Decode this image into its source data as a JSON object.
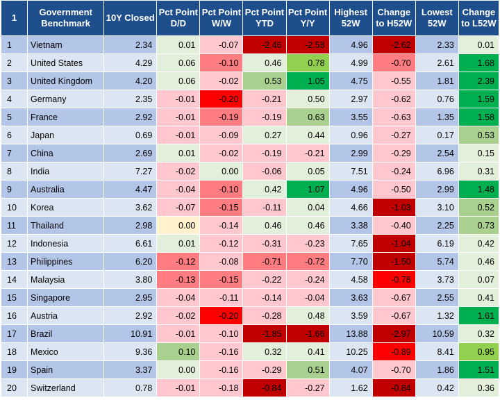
{
  "headers": {
    "idx": "1",
    "benchmark": "Government Benchmark",
    "closed": "10Y Closed",
    "dd": "Pct Point D/D",
    "ww": "Pct Point W/W",
    "ytd": "Pct Point YTD",
    "yy": "Pct Point Y/Y",
    "h52": "Highest 52W",
    "ch52": "Change to H52W",
    "l52": "Lowest 52W",
    "cl52": "Change to L52W"
  },
  "colors": {
    "header_bg": "#1f4e8c",
    "row_dark": "#b4c6e7",
    "row_light": "#dce6f2"
  },
  "rows": [
    {
      "n": "1",
      "name": "Vietnam",
      "closed": "2.34",
      "dd": [
        "0.01",
        "#e2efda"
      ],
      "ww": [
        "-0.07",
        "#ffc7ce"
      ],
      "ytd": [
        "-2.46",
        "#c00000"
      ],
      "yy": [
        "-2.58",
        "#c00000"
      ],
      "h52": "4.96",
      "ch52": [
        "-2.62",
        "#c00000"
      ],
      "l52": "2.33",
      "cl52": [
        "0.01",
        "#e2efda"
      ]
    },
    {
      "n": "2",
      "name": "United States",
      "closed": "4.29",
      "dd": [
        "0.06",
        "#e2efda"
      ],
      "ww": [
        "-0.10",
        "#ff7c80"
      ],
      "ytd": [
        "0.46",
        "#e2efda"
      ],
      "yy": [
        "0.78",
        "#92d050"
      ],
      "h52": "4.99",
      "ch52": [
        "-0.70",
        "#ff7c80"
      ],
      "l52": "2.61",
      "cl52": [
        "1.68",
        "#00b050"
      ]
    },
    {
      "n": "3",
      "name": "United Kingdom",
      "closed": "4.20",
      "dd": [
        "0.06",
        "#e2efda"
      ],
      "ww": [
        "-0.02",
        "#ffc7ce"
      ],
      "ytd": [
        "0.53",
        "#a9d08e"
      ],
      "yy": [
        "1.05",
        "#00b050"
      ],
      "h52": "4.75",
      "ch52": [
        "-0.55",
        "#ffc7ce"
      ],
      "l52": "1.81",
      "cl52": [
        "2.39",
        "#00b050"
      ]
    },
    {
      "n": "4",
      "name": "Germany",
      "closed": "2.35",
      "dd": [
        "-0.01",
        "#ffc7ce"
      ],
      "ww": [
        "-0.20",
        "#ff0000"
      ],
      "ytd": [
        "-0.21",
        "#ffc7ce"
      ],
      "yy": [
        "0.50",
        "#e2efda"
      ],
      "h52": "2.97",
      "ch52": [
        "-0.62",
        "#ffc7ce"
      ],
      "l52": "0.76",
      "cl52": [
        "1.59",
        "#00b050"
      ]
    },
    {
      "n": "5",
      "name": "France",
      "closed": "2.92",
      "dd": [
        "-0.01",
        "#ffc7ce"
      ],
      "ww": [
        "-0.19",
        "#ff7c80"
      ],
      "ytd": [
        "-0.19",
        "#ffc7ce"
      ],
      "yy": [
        "0.63",
        "#a9d08e"
      ],
      "h52": "3.55",
      "ch52": [
        "-0.63",
        "#ffc7ce"
      ],
      "l52": "1.35",
      "cl52": [
        "1.58",
        "#00b050"
      ]
    },
    {
      "n": "6",
      "name": "Japan",
      "closed": "0.69",
      "dd": [
        "-0.01",
        "#ffc7ce"
      ],
      "ww": [
        "-0.09",
        "#ffc7ce"
      ],
      "ytd": [
        "0.27",
        "#e2efda"
      ],
      "yy": [
        "0.44",
        "#e2efda"
      ],
      "h52": "0.96",
      "ch52": [
        "-0.27",
        "#ffc7ce"
      ],
      "l52": "0.17",
      "cl52": [
        "0.53",
        "#a9d08e"
      ]
    },
    {
      "n": "7",
      "name": "China",
      "closed": "2.69",
      "dd": [
        "0.01",
        "#e2efda"
      ],
      "ww": [
        "-0.02",
        "#ffc7ce"
      ],
      "ytd": [
        "-0.19",
        "#ffc7ce"
      ],
      "yy": [
        "-0.21",
        "#ffc7ce"
      ],
      "h52": "2.99",
      "ch52": [
        "-0.29",
        "#ffc7ce"
      ],
      "l52": "2.54",
      "cl52": [
        "0.15",
        "#e2efda"
      ]
    },
    {
      "n": "8",
      "name": "India",
      "closed": "7.27",
      "dd": [
        "-0.02",
        "#ffc7ce"
      ],
      "ww": [
        "0.00",
        "#e2efda"
      ],
      "ytd": [
        "-0.06",
        "#ffc7ce"
      ],
      "yy": [
        "0.05",
        "#e2efda"
      ],
      "h52": "7.51",
      "ch52": [
        "-0.24",
        "#ffc7ce"
      ],
      "l52": "6.96",
      "cl52": [
        "0.31",
        "#e2efda"
      ]
    },
    {
      "n": "9",
      "name": "Australia",
      "closed": "4.47",
      "dd": [
        "-0.04",
        "#ffc7ce"
      ],
      "ww": [
        "-0.10",
        "#ff7c80"
      ],
      "ytd": [
        "0.42",
        "#e2efda"
      ],
      "yy": [
        "1.07",
        "#00b050"
      ],
      "h52": "4.96",
      "ch52": [
        "-0.50",
        "#ffc7ce"
      ],
      "l52": "2.99",
      "cl52": [
        "1.48",
        "#00b050"
      ]
    },
    {
      "n": "10",
      "name": "Korea",
      "closed": "3.62",
      "dd": [
        "-0.07",
        "#ffc7ce"
      ],
      "ww": [
        "-0.15",
        "#ff7c80"
      ],
      "ytd": [
        "-0.11",
        "#ffc7ce"
      ],
      "yy": [
        "0.04",
        "#e2efda"
      ],
      "h52": "4.66",
      "ch52": [
        "-1.03",
        "#c00000"
      ],
      "l52": "3.10",
      "cl52": [
        "0.52",
        "#a9d08e"
      ]
    },
    {
      "n": "11",
      "name": "Thailand",
      "closed": "2.98",
      "dd": [
        "0.00",
        "#fff2cc"
      ],
      "ww": [
        "-0.14",
        "#ffc7ce"
      ],
      "ytd": [
        "0.46",
        "#e2efda"
      ],
      "yy": [
        "0.46",
        "#e2efda"
      ],
      "h52": "3.38",
      "ch52": [
        "-0.40",
        "#ffc7ce"
      ],
      "l52": "2.25",
      "cl52": [
        "0.73",
        "#a9d08e"
      ]
    },
    {
      "n": "12",
      "name": "Indonesia",
      "closed": "6.61",
      "dd": [
        "0.01",
        "#e2efda"
      ],
      "ww": [
        "-0.12",
        "#ffc7ce"
      ],
      "ytd": [
        "-0.31",
        "#ffc7ce"
      ],
      "yy": [
        "-0.23",
        "#ffc7ce"
      ],
      "h52": "7.65",
      "ch52": [
        "-1.04",
        "#c00000"
      ],
      "l52": "6.19",
      "cl52": [
        "0.42",
        "#e2efda"
      ]
    },
    {
      "n": "13",
      "name": "Philippines",
      "closed": "6.20",
      "dd": [
        "-0.12",
        "#ff7c80"
      ],
      "ww": [
        "-0.08",
        "#ffc7ce"
      ],
      "ytd": [
        "-0.71",
        "#ff7c80"
      ],
      "yy": [
        "-0.72",
        "#ff7c80"
      ],
      "h52": "7.70",
      "ch52": [
        "-1.50",
        "#c00000"
      ],
      "l52": "5.74",
      "cl52": [
        "0.46",
        "#e2efda"
      ]
    },
    {
      "n": "14",
      "name": "Malaysia",
      "closed": "3.80",
      "dd": [
        "-0.13",
        "#ff7c80"
      ],
      "ww": [
        "-0.15",
        "#ff7c80"
      ],
      "ytd": [
        "-0.22",
        "#ffc7ce"
      ],
      "yy": [
        "-0.24",
        "#ffc7ce"
      ],
      "h52": "4.58",
      "ch52": [
        "-0.78",
        "#ff0000"
      ],
      "l52": "3.73",
      "cl52": [
        "0.07",
        "#e2efda"
      ]
    },
    {
      "n": "15",
      "name": "Singapore",
      "closed": "2.95",
      "dd": [
        "-0.04",
        "#ffc7ce"
      ],
      "ww": [
        "-0.11",
        "#ffc7ce"
      ],
      "ytd": [
        "-0.14",
        "#ffc7ce"
      ],
      "yy": [
        "-0.04",
        "#ffc7ce"
      ],
      "h52": "3.63",
      "ch52": [
        "-0.67",
        "#ffc7ce"
      ],
      "l52": "2.55",
      "cl52": [
        "0.41",
        "#e2efda"
      ]
    },
    {
      "n": "16",
      "name": "Austria",
      "closed": "2.92",
      "dd": [
        "-0.02",
        "#ffc7ce"
      ],
      "ww": [
        "-0.20",
        "#ff0000"
      ],
      "ytd": [
        "-0.28",
        "#ffc7ce"
      ],
      "yy": [
        "0.48",
        "#e2efda"
      ],
      "h52": "3.59",
      "ch52": [
        "-0.67",
        "#ffc7ce"
      ],
      "l52": "1.32",
      "cl52": [
        "1.61",
        "#00b050"
      ]
    },
    {
      "n": "17",
      "name": "Brazil",
      "closed": "10.91",
      "dd": [
        "-0.01",
        "#ffc7ce"
      ],
      "ww": [
        "-0.10",
        "#ffc7ce"
      ],
      "ytd": [
        "-1.85",
        "#c00000"
      ],
      "yy": [
        "-1.66",
        "#c00000"
      ],
      "h52": "13.88",
      "ch52": [
        "-2.97",
        "#c00000"
      ],
      "l52": "10.59",
      "cl52": [
        "0.32",
        "#e2efda"
      ]
    },
    {
      "n": "18",
      "name": "Mexico",
      "closed": "9.36",
      "dd": [
        "0.10",
        "#a9d08e"
      ],
      "ww": [
        "-0.16",
        "#ffc7ce"
      ],
      "ytd": [
        "0.32",
        "#e2efda"
      ],
      "yy": [
        "0.41",
        "#e2efda"
      ],
      "h52": "10.25",
      "ch52": [
        "-0.89",
        "#ff0000"
      ],
      "l52": "8.41",
      "cl52": [
        "0.95",
        "#92d050"
      ]
    },
    {
      "n": "19",
      "name": "Spain",
      "closed": "3.37",
      "dd": [
        "0.00",
        "#e2efda"
      ],
      "ww": [
        "-0.16",
        "#ffc7ce"
      ],
      "ytd": [
        "-0.29",
        "#ffc7ce"
      ],
      "yy": [
        "0.51",
        "#a9d08e"
      ],
      "h52": "4.07",
      "ch52": [
        "-0.70",
        "#ffc7ce"
      ],
      "l52": "1.86",
      "cl52": [
        "1.51",
        "#00b050"
      ]
    },
    {
      "n": "20",
      "name": "Switzerland",
      "closed": "0.78",
      "dd": [
        "-0.01",
        "#ffc7ce"
      ],
      "ww": [
        "-0.18",
        "#ffc7ce"
      ],
      "ytd": [
        "-0.84",
        "#c00000"
      ],
      "yy": [
        "-0.27",
        "#ffc7ce"
      ],
      "h52": "1.62",
      "ch52": [
        "-0.84",
        "#c00000"
      ],
      "l52": "0.42",
      "cl52": [
        "0.36",
        "#e2efda"
      ]
    }
  ]
}
